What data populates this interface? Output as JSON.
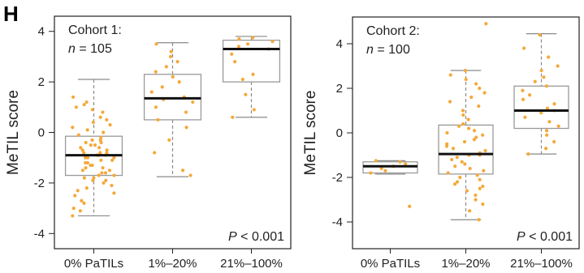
{
  "panel_label": "H",
  "chart_data": [
    {
      "type": "box",
      "annotation": {
        "line1": "Cohort 1:",
        "n_symbol": "n",
        "n_text": " = 105"
      },
      "p_value": {
        "symbol": "P",
        "text": " < 0.001"
      },
      "ylabel": "MeTIL score",
      "ylim": [
        -4.6,
        4.6
      ],
      "yticks": [
        -4,
        -2,
        0,
        2,
        4
      ],
      "categories": [
        "0% PaTILs",
        "1%–20%",
        "21%–100%"
      ],
      "boxes": [
        {
          "category": "0% PaTILs",
          "whisker_low": -3.3,
          "q1": -1.7,
          "median": -0.9,
          "q3": -0.15,
          "whisker_high": 2.1,
          "points": [
            -3.3,
            -3.1,
            -3.0,
            -2.8,
            -2.7,
            -2.5,
            -2.4,
            -2.3,
            -2.2,
            -2.1,
            -2.0,
            -1.9,
            -1.9,
            -1.8,
            -1.8,
            -1.7,
            -1.7,
            -1.6,
            -1.6,
            -1.5,
            -1.5,
            -1.4,
            -1.4,
            -1.3,
            -1.3,
            -1.2,
            -1.2,
            -1.1,
            -1.1,
            -1.0,
            -1.0,
            -1.0,
            -0.9,
            -0.9,
            -0.9,
            -0.8,
            -0.8,
            -0.8,
            -0.7,
            -0.7,
            -0.6,
            -0.6,
            -0.5,
            -0.5,
            -0.4,
            -0.4,
            -0.3,
            -0.3,
            -0.2,
            -0.1,
            0.0,
            0.1,
            0.2,
            0.3,
            0.4,
            0.5,
            0.6,
            0.8,
            0.9,
            1.0,
            1.1,
            1.2,
            1.4
          ]
        },
        {
          "category": "1%–20%",
          "whisker_low": -1.75,
          "q1": 0.5,
          "median": 1.35,
          "q3": 2.3,
          "whisker_high": 3.55,
          "points": [
            -1.7,
            -1.5,
            -0.8,
            -0.3,
            0.2,
            0.5,
            0.8,
            1.0,
            1.2,
            1.3,
            1.4,
            1.6,
            1.8,
            2.0,
            2.2,
            2.4,
            2.6,
            2.8,
            3.0,
            3.2,
            3.5
          ]
        },
        {
          "category": "21%–100%",
          "whisker_low": 0.6,
          "q1": 2.0,
          "median": 3.3,
          "q3": 3.65,
          "whisker_high": 3.8,
          "points": [
            0.6,
            0.9,
            1.5,
            2.1,
            2.3,
            2.8,
            3.1,
            3.3,
            3.4,
            3.5,
            3.6,
            3.7,
            3.75
          ]
        }
      ]
    },
    {
      "type": "box",
      "annotation": {
        "line1": "Cohort 2:",
        "n_symbol": "n",
        "n_text": " = 100"
      },
      "p_value": {
        "symbol": "P",
        "text": " < 0.001"
      },
      "ylabel": "MeTIL score",
      "ylim": [
        -5.2,
        5.2
      ],
      "yticks": [
        -4,
        -2,
        0,
        2,
        4
      ],
      "categories": [
        "0% PaTILs",
        "1%–20%",
        "21%–100%"
      ],
      "boxes": [
        {
          "category": "0% PaTILs",
          "whisker_low": -1.85,
          "q1": -1.8,
          "median": -1.5,
          "q3": -1.3,
          "whisker_high": -1.25,
          "points": [
            -3.3,
            -1.8,
            -1.7,
            -1.6,
            -1.5,
            -1.4,
            -1.3,
            -1.25
          ]
        },
        {
          "category": "1%–20%",
          "whisker_low": -3.9,
          "q1": -1.85,
          "median": -0.95,
          "q3": 0.35,
          "whisker_high": 2.8,
          "points": [
            -3.9,
            -3.5,
            -3.2,
            -3.0,
            -2.8,
            -2.6,
            -2.5,
            -2.4,
            -2.3,
            -2.2,
            -2.1,
            -2.0,
            -1.9,
            -1.8,
            -1.7,
            -1.6,
            -1.5,
            -1.4,
            -1.3,
            -1.2,
            -1.1,
            -1.0,
            -1.0,
            -0.9,
            -0.8,
            -0.7,
            -0.6,
            -0.5,
            -0.4,
            -0.3,
            -0.2,
            -0.1,
            0.0,
            0.1,
            0.2,
            0.3,
            0.4,
            0.6,
            0.8,
            1.0,
            1.2,
            1.4,
            1.6,
            1.8,
            2.0,
            2.2,
            2.4,
            2.6,
            2.8,
            4.9
          ]
        },
        {
          "category": "21%–100%",
          "whisker_low": -0.95,
          "q1": 0.2,
          "median": 1.0,
          "q3": 2.1,
          "whisker_high": 4.45,
          "points": [
            -0.95,
            -0.7,
            -0.4,
            -0.1,
            0.1,
            0.3,
            0.5,
            0.7,
            0.9,
            1.0,
            1.1,
            1.3,
            1.5,
            1.7,
            1.9,
            2.1,
            2.3,
            2.5,
            2.8,
            3.0,
            3.4,
            3.8,
            4.4
          ]
        }
      ]
    }
  ],
  "colors": {
    "points": "#f4a93a",
    "box": "#9a9a9a",
    "median": "#111111",
    "whisker": "#8a8a8a",
    "frame": "#222222"
  }
}
